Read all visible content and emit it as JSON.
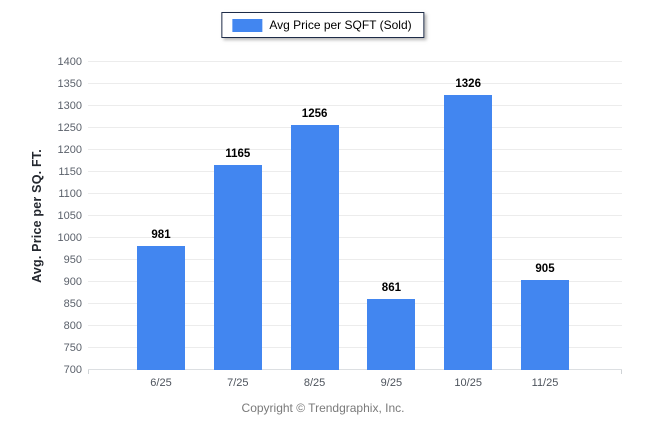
{
  "chart_data": {
    "type": "bar",
    "title": "Avg Price per SQFT (Sold)",
    "categories": [
      "6/25",
      "7/25",
      "8/25",
      "9/25",
      "10/25",
      "11/25"
    ],
    "values": [
      981,
      1165,
      1256,
      861,
      1326,
      905
    ],
    "xlabel": "",
    "ylabel": "Avg. Price per SQ. FT.",
    "ylim": [
      700,
      1400
    ],
    "ytick_step": 50,
    "grid": true,
    "legend_position": "top-center",
    "value_labels": true,
    "bar_color": "#4286f0"
  },
  "legend": {
    "label": "Avg Price per SQFT (Sold)"
  },
  "footer": {
    "copyright": "Copyright © Trendgraphix, Inc."
  },
  "colors": {
    "bar": "#4286f0",
    "legend_border": "#1e2c48",
    "gridline": "#ececec",
    "axis_line": "#dcdfe2",
    "tick_label": "#5b616b",
    "x_tick_label": "#4d535c",
    "value_label": "#000000",
    "copyright": "#7a7a7a",
    "background": "#ffffff"
  }
}
